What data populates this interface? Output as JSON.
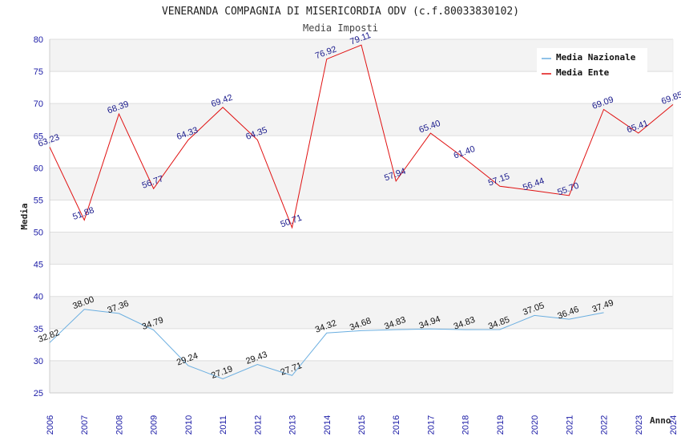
{
  "chart_data": {
    "type": "line",
    "title": "VENERANDA COMPAGNIA DI MISERICORDIA ODV (c.f.80033830102)",
    "subtitle": "Media Imposti",
    "xlabel": "Anno",
    "ylabel": "Media",
    "ylim": [
      25,
      80
    ],
    "yticks": [
      "25",
      "30",
      "35",
      "40",
      "45",
      "50",
      "55",
      "60",
      "65",
      "70",
      "75",
      "80"
    ],
    "categories": [
      "2006",
      "2007",
      "2008",
      "2009",
      "2010",
      "2011",
      "2012",
      "2013",
      "2014",
      "2015",
      "2016",
      "2017",
      "2018",
      "2019",
      "2020",
      "2021",
      "2022",
      "2023",
      "2024"
    ],
    "legend_position": "top-right",
    "series": [
      {
        "name": "Media Nazionale",
        "color": "#6aaee0",
        "label_color": "#111111",
        "values": [
          32.82,
          38.0,
          37.36,
          34.79,
          29.24,
          27.19,
          29.43,
          27.71,
          34.32,
          34.68,
          34.83,
          34.94,
          34.83,
          34.85,
          37.05,
          36.46,
          37.49,
          null,
          null
        ],
        "labels": [
          "32.82",
          "38.00",
          "37.36",
          "34.79",
          "29.24",
          "27.19",
          "29.43",
          "27.71",
          "34.32",
          "34.68",
          "34.83",
          "34.94",
          "34.83",
          "34.85",
          "37.05",
          "36.46",
          "37.49",
          null,
          null
        ]
      },
      {
        "name": "Media Ente",
        "color": "#e01010",
        "label_color": "#1a1a8c",
        "values": [
          63.23,
          51.88,
          68.39,
          56.77,
          64.33,
          69.42,
          64.35,
          50.71,
          76.92,
          79.11,
          57.94,
          65.4,
          61.4,
          57.15,
          56.44,
          55.7,
          69.09,
          65.41,
          69.85
        ],
        "labels": [
          "63.23",
          "51.88",
          "68.39",
          "56.77",
          "64.33",
          "69.42",
          "64.35",
          "50.71",
          "76.92",
          "79.11",
          "57.94",
          "65.40",
          "61.40",
          "57.15",
          "56.44",
          "55.70",
          "69.09",
          "65.41",
          "69.85"
        ]
      }
    ]
  }
}
